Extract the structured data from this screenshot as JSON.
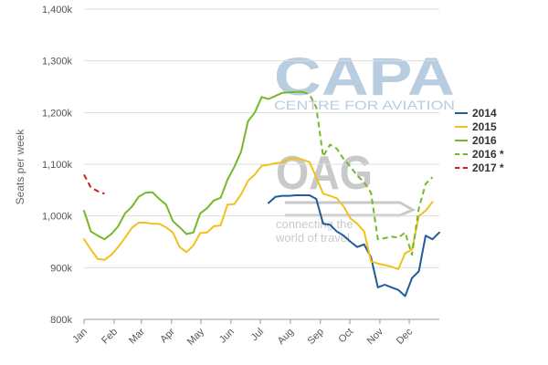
{
  "chart_data": {
    "type": "line",
    "ylabel": "Seats per week",
    "ylim": [
      800000,
      1400000
    ],
    "y_ticks": [
      {
        "value": 800000,
        "label": "800k"
      },
      {
        "value": 900000,
        "label": "900k"
      },
      {
        "value": 1000000,
        "label": "1,000k"
      },
      {
        "value": 1100000,
        "label": "1,100k"
      },
      {
        "value": 1200000,
        "label": "1,200k"
      },
      {
        "value": 1300000,
        "label": "1,300k"
      },
      {
        "value": 1400000,
        "label": "1,400k"
      }
    ],
    "x_unit": "week of year",
    "xlim": [
      1,
      53
    ],
    "x_ticks": [
      {
        "value": 1,
        "label": "Jan"
      },
      {
        "value": 5.4,
        "label": "Feb"
      },
      {
        "value": 9.4,
        "label": "Mar"
      },
      {
        "value": 13.8,
        "label": "Apr"
      },
      {
        "value": 18.1,
        "label": "May"
      },
      {
        "value": 22.5,
        "label": "Jun"
      },
      {
        "value": 26.8,
        "label": "Jul"
      },
      {
        "value": 31.2,
        "label": "Aug"
      },
      {
        "value": 35.6,
        "label": "Sep"
      },
      {
        "value": 39.9,
        "label": "Oct"
      },
      {
        "value": 44.3,
        "label": "Nov"
      },
      {
        "value": 48.6,
        "label": "Dec"
      }
    ],
    "grid": "horizontal",
    "legend_position": "right",
    "series": [
      {
        "name": "2014",
        "color": "#1f5c99",
        "dash": "solid",
        "points": [
          [
            28,
            1025000
          ],
          [
            29,
            1037000
          ],
          [
            30,
            1039000
          ],
          [
            31,
            1039000
          ],
          [
            32,
            1040000
          ],
          [
            33,
            1040000
          ],
          [
            34,
            1040000
          ],
          [
            35,
            1033000
          ],
          [
            36,
            985000
          ],
          [
            37,
            983000
          ],
          [
            38,
            970000
          ],
          [
            39,
            962000
          ],
          [
            40,
            950000
          ],
          [
            41,
            940000
          ],
          [
            42,
            945000
          ],
          [
            43,
            920000
          ],
          [
            44,
            862000
          ],
          [
            45,
            867000
          ],
          [
            46,
            862000
          ],
          [
            47,
            857000
          ],
          [
            48,
            845000
          ],
          [
            49,
            880000
          ],
          [
            50,
            893000
          ],
          [
            51,
            962000
          ],
          [
            52,
            955000
          ],
          [
            53,
            968000
          ]
        ]
      },
      {
        "name": "2015",
        "color": "#f2c01e",
        "dash": "solid",
        "points": [
          [
            1,
            955000
          ],
          [
            2,
            935000
          ],
          [
            3,
            917000
          ],
          [
            4,
            915000
          ],
          [
            5,
            925000
          ],
          [
            6,
            940000
          ],
          [
            7,
            958000
          ],
          [
            8,
            977000
          ],
          [
            9,
            987000
          ],
          [
            10,
            987000
          ],
          [
            11,
            985000
          ],
          [
            12,
            985000
          ],
          [
            13,
            978000
          ],
          [
            14,
            968000
          ],
          [
            15,
            940000
          ],
          [
            16,
            930000
          ],
          [
            17,
            943000
          ],
          [
            18,
            967000
          ],
          [
            19,
            968000
          ],
          [
            20,
            980000
          ],
          [
            21,
            982000
          ],
          [
            22,
            1022000
          ],
          [
            23,
            1023000
          ],
          [
            24,
            1042000
          ],
          [
            25,
            1068000
          ],
          [
            26,
            1080000
          ],
          [
            27,
            1097000
          ],
          [
            28,
            1099000
          ],
          [
            29,
            1102000
          ],
          [
            30,
            1103000
          ],
          [
            31,
            1111000
          ],
          [
            32,
            1111000
          ],
          [
            33,
            1109000
          ],
          [
            34,
            1104000
          ],
          [
            35,
            1075000
          ],
          [
            36,
            1043000
          ],
          [
            37,
            1039000
          ],
          [
            38,
            1034000
          ],
          [
            39,
            1018000
          ],
          [
            40,
            995000
          ],
          [
            41,
            985000
          ],
          [
            42,
            970000
          ],
          [
            43,
            912000
          ],
          [
            44,
            908000
          ],
          [
            45,
            905000
          ],
          [
            46,
            902000
          ],
          [
            47,
            897000
          ],
          [
            48,
            928000
          ],
          [
            49,
            935000
          ],
          [
            50,
            1000000
          ],
          [
            51,
            1010000
          ],
          [
            52,
            1027000
          ]
        ]
      },
      {
        "name": "2016",
        "color": "#76b82a",
        "dash": "solid",
        "points": [
          [
            1,
            1010000
          ],
          [
            2,
            970000
          ],
          [
            3,
            962000
          ],
          [
            4,
            955000
          ],
          [
            5,
            965000
          ],
          [
            6,
            980000
          ],
          [
            7,
            1005000
          ],
          [
            8,
            1018000
          ],
          [
            9,
            1037000
          ],
          [
            10,
            1045000
          ],
          [
            11,
            1046000
          ],
          [
            12,
            1033000
          ],
          [
            13,
            1022000
          ],
          [
            14,
            990000
          ],
          [
            15,
            978000
          ],
          [
            16,
            965000
          ],
          [
            17,
            968000
          ],
          [
            18,
            1005000
          ],
          [
            19,
            1015000
          ],
          [
            20,
            1030000
          ],
          [
            21,
            1035000
          ],
          [
            22,
            1070000
          ],
          [
            23,
            1095000
          ],
          [
            24,
            1125000
          ],
          [
            25,
            1183000
          ],
          [
            26,
            1200000
          ],
          [
            27,
            1230000
          ],
          [
            28,
            1226000
          ],
          [
            29,
            1232000
          ],
          [
            30,
            1238000
          ],
          [
            31,
            1239000
          ],
          [
            32,
            1240000
          ],
          [
            33,
            1240000
          ]
        ]
      },
      {
        "name": "2016 *",
        "color": "#76b82a",
        "dash": "dashed",
        "points": [
          [
            33,
            1240000
          ],
          [
            34,
            1235000
          ],
          [
            35,
            1210000
          ],
          [
            36,
            1115000
          ],
          [
            37,
            1138000
          ],
          [
            38,
            1130000
          ],
          [
            39,
            1110000
          ],
          [
            40,
            1095000
          ],
          [
            41,
            1078000
          ],
          [
            42,
            1065000
          ],
          [
            43,
            1045000
          ],
          [
            44,
            955000
          ],
          [
            45,
            957000
          ],
          [
            46,
            960000
          ],
          [
            47,
            958000
          ],
          [
            48,
            968000
          ],
          [
            49,
            925000
          ],
          [
            50,
            1015000
          ],
          [
            51,
            1062000
          ],
          [
            52,
            1075000
          ]
        ]
      },
      {
        "name": "2017 *",
        "color": "#cc1f1f",
        "dash": "dashed",
        "points": [
          [
            1,
            1080000
          ],
          [
            2,
            1055000
          ],
          [
            3,
            1048000
          ],
          [
            4,
            1043000
          ]
        ]
      }
    ]
  },
  "watermarks": {
    "capa_logo": "CAPA",
    "capa_sub": "CENTRE FOR AVIATION",
    "oag_logo": "OAG",
    "oag_sub_1": "connecting the",
    "oag_sub_2": "world of travel"
  }
}
